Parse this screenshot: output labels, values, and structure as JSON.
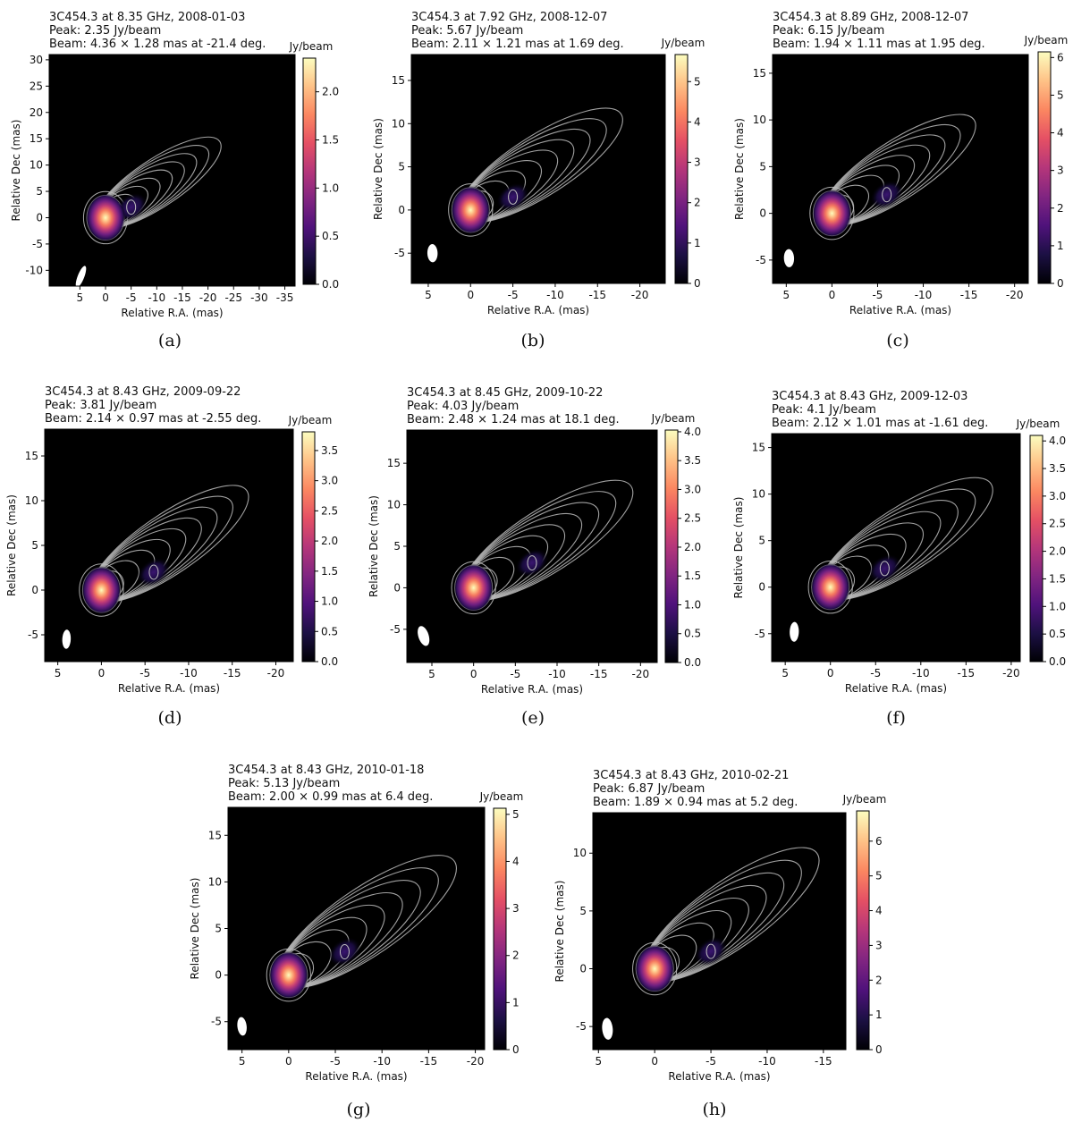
{
  "figure": {
    "source": "3C454.3",
    "xlabel": "Relative R.A. (mas)",
    "ylabel": "Relative Dec (mas)",
    "colorbar_label": "Jy/beam",
    "colormap": [
      "#000004",
      "#1c1044",
      "#4f127b",
      "#812581",
      "#b5367a",
      "#e55064",
      "#fb8761",
      "#fec287",
      "#fcfdbf"
    ],
    "contour_color": "#bdbdbd",
    "background": "#000000"
  },
  "chart_data": [
    {
      "type": "heatmap",
      "panel": "(a)",
      "title": {
        "line1": "3C454.3 at 8.35 GHz, 2008-01-03",
        "line2": "Peak: 2.35 Jy/beam",
        "line3": "Beam: 4.36 × 1.28 mas at -21.4 deg."
      },
      "freq_ghz": 8.35,
      "date": "2008-01-03",
      "peak_jy_per_beam": 2.35,
      "beam": {
        "major_mas": 4.36,
        "minor_mas": 1.28,
        "pa_deg": -21.4,
        "x_mas": 4.8,
        "y_mas": -11.2
      },
      "xlim": [
        11,
        -37
      ],
      "ylim": [
        -13,
        31
      ],
      "xticks": [
        5,
        0,
        -5,
        -10,
        -15,
        -20,
        -25,
        -30,
        -35
      ],
      "yticks": [
        -10,
        -5,
        0,
        5,
        10,
        15,
        20,
        25,
        30
      ],
      "cbar_range": [
        0,
        2.35
      ],
      "cbar_ticks": [
        {
          "v": 0,
          "label": "0.0"
        },
        {
          "v": 0.5,
          "label": "0.5"
        },
        {
          "v": 1.0,
          "label": "1.0"
        },
        {
          "v": 1.5,
          "label": "1.5"
        },
        {
          "v": 2.0,
          "label": "2.0"
        }
      ],
      "components_mas": [
        {
          "x": 0,
          "y": 0,
          "rel": 1.0
        },
        {
          "x": -5,
          "y": 2,
          "rel": 0.25
        }
      ],
      "jet_extent_mas": {
        "x": -20,
        "y": 13
      }
    },
    {
      "type": "heatmap",
      "panel": "(b)",
      "title": {
        "line1": "3C454.3 at 7.92 GHz, 2008-12-07",
        "line2": "Peak: 5.67 Jy/beam",
        "line3": "Beam: 2.11 × 1.21 mas at 1.69 deg."
      },
      "freq_ghz": 7.92,
      "date": "2008-12-07",
      "peak_jy_per_beam": 5.67,
      "beam": {
        "major_mas": 2.11,
        "minor_mas": 1.21,
        "pa_deg": 1.69,
        "x_mas": 4.5,
        "y_mas": -5
      },
      "xlim": [
        7,
        -23
      ],
      "ylim": [
        -8.5,
        18
      ],
      "xticks": [
        5,
        0,
        -5,
        -10,
        -15,
        -20
      ],
      "yticks": [
        -5,
        0,
        5,
        10,
        15
      ],
      "cbar_range": [
        0,
        5.67
      ],
      "cbar_ticks": [
        {
          "v": 0,
          "label": "0"
        },
        {
          "v": 1,
          "label": "1"
        },
        {
          "v": 2,
          "label": "2"
        },
        {
          "v": 3,
          "label": "3"
        },
        {
          "v": 4,
          "label": "4"
        },
        {
          "v": 5,
          "label": "5"
        }
      ],
      "components_mas": [
        {
          "x": 0,
          "y": 0,
          "rel": 1.0
        },
        {
          "x": -5,
          "y": 1.5,
          "rel": 0.12
        }
      ],
      "jet_extent_mas": {
        "x": -16,
        "y": 10
      }
    },
    {
      "type": "heatmap",
      "panel": "(c)",
      "title": {
        "line1": "3C454.3 at 8.89 GHz, 2008-12-07",
        "line2": "Peak: 6.15 Jy/beam",
        "line3": "Beam: 1.94 × 1.11 mas at 1.95 deg."
      },
      "freq_ghz": 8.89,
      "date": "2008-12-07",
      "peak_jy_per_beam": 6.15,
      "beam": {
        "major_mas": 1.94,
        "minor_mas": 1.11,
        "pa_deg": 1.95,
        "x_mas": 4.7,
        "y_mas": -4.8
      },
      "xlim": [
        6.5,
        -21.5
      ],
      "ylim": [
        -7.5,
        17
      ],
      "xticks": [
        5,
        0,
        -5,
        -10,
        -15,
        -20
      ],
      "yticks": [
        -5,
        0,
        5,
        10,
        15
      ],
      "cbar_range": [
        0,
        6.15
      ],
      "cbar_ticks": [
        {
          "v": 0,
          "label": "0"
        },
        {
          "v": 1,
          "label": "1"
        },
        {
          "v": 2,
          "label": "2"
        },
        {
          "v": 3,
          "label": "3"
        },
        {
          "v": 4,
          "label": "4"
        },
        {
          "v": 5,
          "label": "5"
        },
        {
          "v": 6,
          "label": "6"
        }
      ],
      "components_mas": [
        {
          "x": 0,
          "y": 0,
          "rel": 1.0
        },
        {
          "x": -6,
          "y": 2,
          "rel": 0.1
        }
      ],
      "jet_extent_mas": {
        "x": -14,
        "y": 9
      }
    },
    {
      "type": "heatmap",
      "panel": "(d)",
      "title": {
        "line1": "3C454.3 at 8.43 GHz, 2009-09-22",
        "line2": "Peak: 3.81 Jy/beam",
        "line3": "Beam: 2.14 × 0.97 mas at -2.55 deg."
      },
      "freq_ghz": 8.43,
      "date": "2009-09-22",
      "peak_jy_per_beam": 3.81,
      "beam": {
        "major_mas": 2.14,
        "minor_mas": 0.97,
        "pa_deg": -2.55,
        "x_mas": 4,
        "y_mas": -5.5
      },
      "xlim": [
        6.5,
        -22
      ],
      "ylim": [
        -8,
        18
      ],
      "xticks": [
        5,
        0,
        -5,
        -10,
        -15,
        -20
      ],
      "yticks": [
        -5,
        0,
        5,
        10,
        15
      ],
      "cbar_range": [
        0,
        3.81
      ],
      "cbar_ticks": [
        {
          "v": 0,
          "label": "0.0"
        },
        {
          "v": 0.5,
          "label": "0.5"
        },
        {
          "v": 1.0,
          "label": "1.0"
        },
        {
          "v": 1.5,
          "label": "1.5"
        },
        {
          "v": 2.0,
          "label": "2.0"
        },
        {
          "v": 2.5,
          "label": "2.5"
        },
        {
          "v": 3.0,
          "label": "3.0"
        },
        {
          "v": 3.5,
          "label": "3.5"
        }
      ],
      "components_mas": [
        {
          "x": 0,
          "y": 0,
          "rel": 1.0
        },
        {
          "x": -6,
          "y": 2,
          "rel": 0.12
        }
      ],
      "jet_extent_mas": {
        "x": -15,
        "y": 10
      }
    },
    {
      "type": "heatmap",
      "panel": "(e)",
      "title": {
        "line1": "3C454.3 at 8.45 GHz, 2009-10-22",
        "line2": "Peak: 4.03 Jy/beam",
        "line3": "Beam: 2.48 × 1.24 mas at 18.1 deg."
      },
      "freq_ghz": 8.45,
      "date": "2009-10-22",
      "peak_jy_per_beam": 4.03,
      "beam": {
        "major_mas": 2.48,
        "minor_mas": 1.24,
        "pa_deg": 18.1,
        "x_mas": 6,
        "y_mas": -5.8
      },
      "xlim": [
        8,
        -22
      ],
      "ylim": [
        -9,
        19
      ],
      "xticks": [
        5,
        0,
        -5,
        -10,
        -15,
        -20
      ],
      "yticks": [
        -5,
        0,
        5,
        10,
        15
      ],
      "cbar_range": [
        0,
        4.03
      ],
      "cbar_ticks": [
        {
          "v": 0,
          "label": "0.0"
        },
        {
          "v": 0.5,
          "label": "0.5"
        },
        {
          "v": 1.0,
          "label": "1.0"
        },
        {
          "v": 1.5,
          "label": "1.5"
        },
        {
          "v": 2.0,
          "label": "2.0"
        },
        {
          "v": 2.5,
          "label": "2.5"
        },
        {
          "v": 3.0,
          "label": "3.0"
        },
        {
          "v": 3.5,
          "label": "3.5"
        },
        {
          "v": 4.0,
          "label": "4.0"
        }
      ],
      "components_mas": [
        {
          "x": 0,
          "y": 0,
          "rel": 1.0
        },
        {
          "x": -7,
          "y": 3,
          "rel": 0.1
        }
      ],
      "jet_extent_mas": {
        "x": -17,
        "y": 11
      }
    },
    {
      "type": "heatmap",
      "panel": "(f)",
      "title": {
        "line1": "3C454.3 at 8.43 GHz, 2009-12-03",
        "line2": "Peak: 4.1 Jy/beam",
        "line3": "Beam: 2.12 × 1.01 mas at -1.61 deg."
      },
      "freq_ghz": 8.43,
      "date": "2009-12-03",
      "peak_jy_per_beam": 4.1,
      "beam": {
        "major_mas": 2.12,
        "minor_mas": 1.01,
        "pa_deg": -1.61,
        "x_mas": 4,
        "y_mas": -4.8
      },
      "xlim": [
        6.5,
        -21
      ],
      "ylim": [
        -8,
        16.5
      ],
      "xticks": [
        5,
        0,
        -5,
        -10,
        -15,
        -20
      ],
      "yticks": [
        -5,
        0,
        5,
        10,
        15
      ],
      "cbar_range": [
        0,
        4.1
      ],
      "cbar_ticks": [
        {
          "v": 0,
          "label": "0.0"
        },
        {
          "v": 0.5,
          "label": "0.5"
        },
        {
          "v": 1.0,
          "label": "1.0"
        },
        {
          "v": 1.5,
          "label": "1.5"
        },
        {
          "v": 2.0,
          "label": "2.0"
        },
        {
          "v": 2.5,
          "label": "2.5"
        },
        {
          "v": 3.0,
          "label": "3.0"
        },
        {
          "v": 3.5,
          "label": "3.5"
        },
        {
          "v": 4.0,
          "label": "4.0"
        }
      ],
      "components_mas": [
        {
          "x": 0,
          "y": 0,
          "rel": 1.0
        },
        {
          "x": -6,
          "y": 2,
          "rel": 0.1
        }
      ],
      "jet_extent_mas": {
        "x": -16,
        "y": 10
      }
    },
    {
      "type": "heatmap",
      "panel": "(g)",
      "title": {
        "line1": "3C454.3 at 8.43 GHz, 2010-01-18",
        "line2": "Peak: 5.13 Jy/beam",
        "line3": "Beam: 2.00 × 0.99 mas at 6.4 deg."
      },
      "freq_ghz": 8.43,
      "date": "2010-01-18",
      "peak_jy_per_beam": 5.13,
      "beam": {
        "major_mas": 2.0,
        "minor_mas": 0.99,
        "pa_deg": 6.4,
        "x_mas": 5,
        "y_mas": -5.5
      },
      "xlim": [
        6.5,
        -21
      ],
      "ylim": [
        -8,
        18
      ],
      "xticks": [
        5,
        0,
        -5,
        -10,
        -15,
        -20
      ],
      "yticks": [
        -5,
        0,
        5,
        10,
        15
      ],
      "cbar_range": [
        0,
        5.13
      ],
      "cbar_ticks": [
        {
          "v": 0,
          "label": "0"
        },
        {
          "v": 1,
          "label": "1"
        },
        {
          "v": 2,
          "label": "2"
        },
        {
          "v": 3,
          "label": "3"
        },
        {
          "v": 4,
          "label": "4"
        },
        {
          "v": 5,
          "label": "5"
        }
      ],
      "components_mas": [
        {
          "x": 0,
          "y": 0,
          "rel": 1.0
        },
        {
          "x": -6,
          "y": 2.5,
          "rel": 0.1
        }
      ],
      "jet_extent_mas": {
        "x": -16,
        "y": 11
      }
    },
    {
      "type": "heatmap",
      "panel": "(h)",
      "title": {
        "line1": "3C454.3 at 8.43 GHz, 2010-02-21",
        "line2": "Peak: 6.87 Jy/beam",
        "line3": "Beam: 1.89 × 0.94 mas at 5.2 deg."
      },
      "freq_ghz": 8.43,
      "date": "2010-02-21",
      "peak_jy_per_beam": 6.87,
      "beam": {
        "major_mas": 1.89,
        "minor_mas": 0.94,
        "pa_deg": 5.2,
        "x_mas": 4.2,
        "y_mas": -5.2
      },
      "xlim": [
        5.5,
        -17
      ],
      "ylim": [
        -7,
        13.5
      ],
      "xticks": [
        5,
        0,
        -5,
        -10,
        -15
      ],
      "yticks": [
        -5,
        0,
        5,
        10
      ],
      "cbar_range": [
        0,
        6.87
      ],
      "cbar_ticks": [
        {
          "v": 0,
          "label": "0"
        },
        {
          "v": 1,
          "label": "1"
        },
        {
          "v": 2,
          "label": "2"
        },
        {
          "v": 3,
          "label": "3"
        },
        {
          "v": 4,
          "label": "4"
        },
        {
          "v": 5,
          "label": "5"
        },
        {
          "v": 6,
          "label": "6"
        }
      ],
      "components_mas": [
        {
          "x": 0,
          "y": 0,
          "rel": 1.0
        },
        {
          "x": -5,
          "y": 1.5,
          "rel": 0.1
        }
      ],
      "jet_extent_mas": {
        "x": -13,
        "y": 9
      }
    }
  ]
}
